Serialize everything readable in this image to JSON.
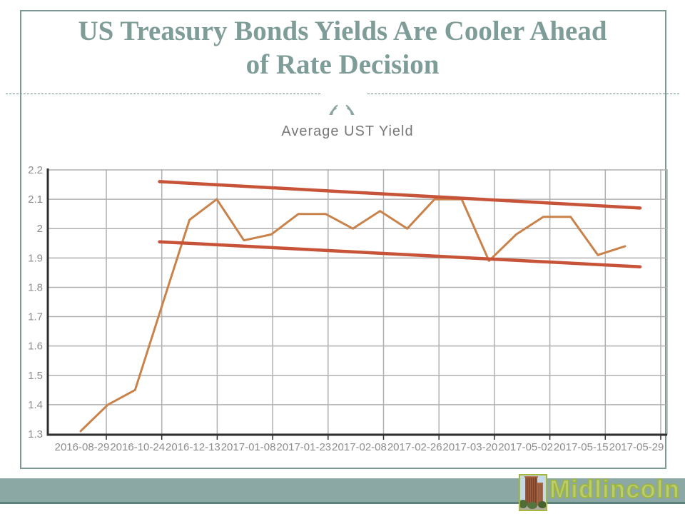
{
  "slide": {
    "title": {
      "line1": "US Treasury Bonds Yields Are Cooler Ahead",
      "line2": "of Rate Decision"
    },
    "accent_color": "#7e9c98",
    "frame_border_color": "#7d9995"
  },
  "chart_data": {
    "type": "line",
    "title": "Average UST Yield",
    "xlabel": "",
    "ylabel": "",
    "x_labels": [
      "2016-08-29",
      "2016-10-24",
      "2016-12-13",
      "2017-01-08",
      "2017-01-23",
      "2017-02-08",
      "2017-02-26",
      "2017-03-20",
      "2017-05-02",
      "2017-05-15",
      "2017-05-29"
    ],
    "yticks": [
      2.2,
      2.1,
      2,
      1.9,
      1.8,
      1.7,
      1.6,
      1.5,
      1.4,
      1.3
    ],
    "ylim": [
      1.3,
      2.2
    ],
    "grid": true,
    "legend": "none",
    "series": [
      {
        "name": "Average UST Yield",
        "color": "#c9824a",
        "values": [
          1.31,
          1.4,
          1.45,
          1.74,
          2.03,
          2.1,
          1.96,
          1.98,
          2.05,
          2.05,
          2.0,
          2.06,
          2.0,
          2.1,
          2.1,
          1.89,
          1.98,
          2.04,
          2.04,
          1.91,
          1.94
        ]
      }
    ],
    "trendlines": [
      {
        "name": "upper-channel-line",
        "color": "#c75339",
        "start_index": 2.9,
        "start_value": 2.16,
        "end_index": 20.55,
        "end_value": 2.07
      },
      {
        "name": "lower-channel-line",
        "color": "#c75339",
        "start_index": 2.9,
        "start_value": 1.955,
        "end_index": 20.55,
        "end_value": 1.87
      }
    ],
    "colors": {
      "line": "#c9824a",
      "trend": "#c75339",
      "grid": "#b0b0b0",
      "axis": "#2f2f2f",
      "tick_text": "#8c8c8c",
      "title_text": "#787878"
    }
  },
  "footer": {
    "brand": "Midlincoln",
    "bar_color": "#8ca8a4",
    "brand_color": "#a9bf45",
    "logo_border_color": "#a2b73b"
  }
}
